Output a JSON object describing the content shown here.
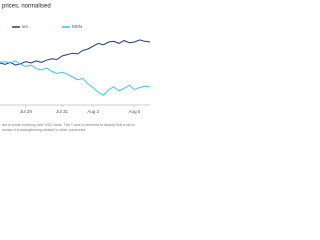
{
  "chart_data": {
    "type": "line",
    "title": "prices, normalised",
    "categories": [
      null,
      null,
      null,
      null,
      null,
      "Jul 29",
      null,
      null,
      null,
      null,
      null,
      null,
      "Jul 31",
      null,
      null,
      null,
      null,
      null,
      "Aug 2",
      null,
      null,
      null,
      null,
      null,
      null,
      null,
      "Aug 5",
      null,
      null,
      null
    ],
    "series": [
      {
        "name": "ies",
        "color": "#1f3a73",
        "values": [
          60,
          58,
          61,
          57,
          59,
          62,
          60,
          63,
          61,
          64,
          66,
          65,
          70,
          72,
          74,
          73,
          78,
          80,
          84,
          88,
          86,
          90,
          91,
          88,
          92,
          89,
          90,
          93,
          91,
          90
        ]
      },
      {
        "name": "MXN",
        "color": "#45c1e6",
        "values": [
          61,
          62,
          60,
          63,
          58,
          55,
          57,
          52,
          50,
          53,
          48,
          45,
          47,
          44,
          40,
          36,
          38,
          30,
          25,
          18,
          14,
          22,
          26,
          20,
          24,
          28,
          22,
          25,
          27,
          26
        ]
      }
    ],
    "ylim": [
      0,
      100
    ],
    "footnote": [
      "are in some currency over USD value. The Y axis is reversed to display that a fall in",
      "means it is strengthening relative to other currencies"
    ]
  }
}
